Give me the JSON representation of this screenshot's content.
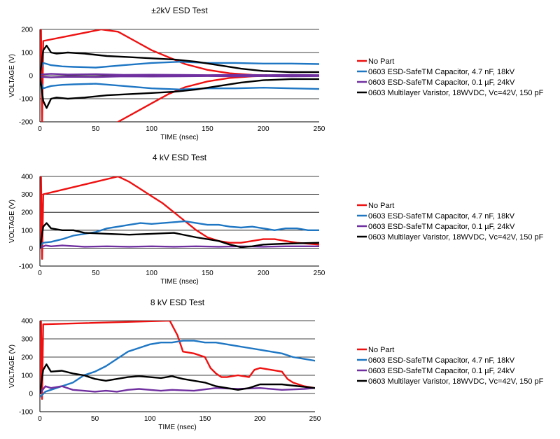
{
  "colors": {
    "no_part": "#ee1111",
    "cap_4n7": "#1f77c4",
    "cap_0u1": "#7030a0",
    "varistor": "#000000",
    "grid": "#000000"
  },
  "chart_data": [
    {
      "type": "line",
      "title": "±2kV ESD Test",
      "xlabel": "TIME (nsec)",
      "ylabel": "VOLTAGE (V)",
      "xlim": [
        0,
        250
      ],
      "ylim": [
        -200,
        200
      ],
      "xticks": [
        0,
        50,
        100,
        150,
        200,
        250
      ],
      "yticks": [
        -200,
        -100,
        0,
        100,
        200
      ],
      "grid": true,
      "legend_position": "right",
      "series": [
        {
          "name": "No Part",
          "color_key": "no_part",
          "x": [
            0,
            1,
            2,
            3,
            55,
            70,
            85,
            100,
            115,
            130,
            150,
            170,
            190,
            210,
            230,
            250
          ],
          "y": [
            0,
            200,
            -200,
            150,
            200,
            190,
            150,
            110,
            80,
            50,
            25,
            10,
            3,
            0,
            0,
            0
          ]
        },
        {
          "name": "No Part",
          "color_key": "no_part",
          "x": [
            70,
            85,
            100,
            115,
            130,
            150,
            170,
            190,
            210,
            230,
            250
          ],
          "y": [
            -200,
            -160,
            -120,
            -80,
            -50,
            -25,
            -10,
            -3,
            0,
            0,
            0
          ]
        },
        {
          "name": "0603 ESD-SafeTM Capacitor, 4.7 nF, 18kV",
          "color_key": "cap_4n7",
          "x": [
            0,
            3,
            10,
            20,
            30,
            50,
            75,
            100,
            125,
            150,
            175,
            200,
            225,
            250
          ],
          "y": [
            20,
            55,
            45,
            40,
            38,
            35,
            45,
            55,
            60,
            55,
            55,
            52,
            52,
            50
          ]
        },
        {
          "name": "0603 ESD-SafeTM Capacitor, 4.7 nF, 18kV",
          "color_key": "cap_4n7",
          "x": [
            0,
            3,
            10,
            20,
            30,
            50,
            75,
            100,
            125,
            150,
            175,
            200,
            225,
            250
          ],
          "y": [
            -20,
            -55,
            -45,
            -40,
            -38,
            -35,
            -45,
            -55,
            -60,
            -55,
            -55,
            -52,
            -55,
            -58
          ]
        },
        {
          "name": "0603 ESD-SafeTM Capacitor, 0.1 µF, 24kV",
          "color_key": "cap_0u1",
          "x": [
            0,
            10,
            25,
            50,
            75,
            100,
            125,
            150,
            175,
            200,
            225,
            250
          ],
          "y": [
            5,
            8,
            5,
            6,
            3,
            4,
            3,
            2,
            3,
            2,
            3,
            2
          ]
        },
        {
          "name": "0603 ESD-SafeTM Capacitor, 0.1 µF, 24kV",
          "color_key": "cap_0u1",
          "x": [
            0,
            10,
            25,
            50,
            75,
            100,
            125,
            150,
            175,
            200,
            225,
            250
          ],
          "y": [
            -5,
            -8,
            -5,
            -6,
            -3,
            -4,
            -3,
            -2,
            -3,
            -2,
            -3,
            -2
          ]
        },
        {
          "name": "0603 Multilayer Varistor, 18WVDC, Vc=42V, 150 pF",
          "color_key": "varistor",
          "x": [
            0,
            3,
            6,
            10,
            15,
            25,
            40,
            60,
            80,
            100,
            120,
            140,
            160,
            180,
            200,
            225,
            250
          ],
          "y": [
            0,
            110,
            130,
            100,
            95,
            100,
            95,
            85,
            80,
            75,
            70,
            60,
            45,
            30,
            20,
            15,
            15
          ]
        },
        {
          "name": "0603 Multilayer Varistor, 18WVDC, Vc=42V, 150 pF",
          "color_key": "varistor",
          "x": [
            0,
            3,
            6,
            10,
            15,
            25,
            40,
            60,
            80,
            100,
            120,
            140,
            160,
            180,
            200,
            225,
            250
          ],
          "y": [
            0,
            -110,
            -140,
            -100,
            -95,
            -100,
            -95,
            -85,
            -80,
            -75,
            -70,
            -60,
            -45,
            -30,
            -20,
            -15,
            -15
          ]
        }
      ]
    },
    {
      "type": "line",
      "title": "4 kV ESD Test",
      "xlabel": "TIME (nsec)",
      "ylabel": "VOLTAGE (V)",
      "xlim": [
        0,
        250
      ],
      "ylim": [
        -100,
        400
      ],
      "xticks": [
        0,
        50,
        100,
        150,
        200,
        250
      ],
      "yticks": [
        -100,
        0,
        100,
        200,
        300,
        400
      ],
      "grid": true,
      "legend_position": "right",
      "series": [
        {
          "name": "No Part",
          "color_key": "no_part",
          "x": [
            0,
            1,
            2,
            3,
            70,
            80,
            90,
            100,
            110,
            120,
            130,
            140,
            150,
            160,
            170,
            180,
            190,
            200,
            210,
            220,
            230,
            240,
            250
          ],
          "y": [
            0,
            400,
            -60,
            300,
            400,
            370,
            330,
            290,
            250,
            200,
            150,
            100,
            60,
            40,
            30,
            30,
            40,
            50,
            50,
            40,
            30,
            25,
            20
          ]
        },
        {
          "name": "0603 ESD-SafeTM Capacitor, 4.7 nF, 18kV",
          "color_key": "cap_4n7",
          "x": [
            0,
            3,
            10,
            20,
            30,
            40,
            50,
            60,
            70,
            80,
            90,
            100,
            110,
            120,
            130,
            140,
            150,
            160,
            170,
            180,
            190,
            200,
            210,
            220,
            230,
            240,
            250
          ],
          "y": [
            10,
            30,
            35,
            50,
            70,
            80,
            90,
            110,
            120,
            130,
            140,
            135,
            140,
            145,
            150,
            140,
            130,
            130,
            120,
            115,
            120,
            110,
            100,
            110,
            110,
            100,
            100
          ]
        },
        {
          "name": "0603 ESD-SafeTM Capacitor, 0.1 µF, 24kV",
          "color_key": "cap_0u1",
          "x": [
            0,
            5,
            10,
            20,
            40,
            60,
            80,
            100,
            120,
            140,
            160,
            180,
            200,
            220,
            250
          ],
          "y": [
            0,
            15,
            10,
            15,
            8,
            10,
            8,
            10,
            8,
            10,
            8,
            10,
            8,
            10,
            10
          ]
        },
        {
          "name": "0603 Multilayer Varistor, 18WVDC, Vc=42V, 150 pF",
          "color_key": "varistor",
          "x": [
            0,
            3,
            6,
            10,
            20,
            30,
            40,
            60,
            80,
            100,
            120,
            140,
            160,
            170,
            180,
            190,
            200,
            220,
            250
          ],
          "y": [
            0,
            120,
            140,
            110,
            100,
            100,
            85,
            80,
            75,
            80,
            85,
            60,
            40,
            20,
            5,
            10,
            20,
            25,
            30
          ]
        }
      ]
    },
    {
      "type": "line",
      "title": "8 kV ESD Test",
      "xlabel": "TIME (nsec)",
      "ylabel": "VOLTAGE (V)",
      "xlim": [
        0,
        250
      ],
      "ylim": [
        -100,
        400
      ],
      "xticks": [
        0,
        50,
        100,
        150,
        200,
        250
      ],
      "yticks": [
        -100,
        0,
        100,
        200,
        300,
        400
      ],
      "grid": true,
      "legend_position": "right",
      "series": [
        {
          "name": "No Part",
          "color_key": "no_part",
          "x": [
            0,
            1,
            2,
            3,
            118,
            125,
            130,
            140,
            150,
            155,
            160,
            165,
            170,
            180,
            190,
            195,
            200,
            210,
            220,
            225,
            230,
            240,
            250
          ],
          "y": [
            0,
            400,
            -30,
            380,
            400,
            320,
            230,
            220,
            200,
            140,
            110,
            90,
            90,
            100,
            90,
            130,
            140,
            130,
            120,
            80,
            60,
            40,
            30
          ]
        },
        {
          "name": "0603 ESD-SafeTM Capacitor, 4.7 nF, 18kV",
          "color_key": "cap_4n7",
          "x": [
            0,
            5,
            10,
            20,
            30,
            40,
            50,
            60,
            70,
            80,
            90,
            100,
            110,
            120,
            130,
            140,
            150,
            160,
            170,
            180,
            190,
            200,
            210,
            220,
            230,
            240,
            250
          ],
          "y": [
            -20,
            10,
            20,
            40,
            60,
            100,
            120,
            150,
            190,
            230,
            250,
            270,
            280,
            280,
            290,
            290,
            280,
            280,
            270,
            260,
            250,
            240,
            230,
            220,
            200,
            190,
            180
          ]
        },
        {
          "name": "0603 ESD-SafeTM Capacitor, 0.1 µF, 24kV",
          "color_key": "cap_0u1",
          "x": [
            0,
            5,
            10,
            20,
            30,
            40,
            50,
            60,
            70,
            80,
            90,
            100,
            110,
            120,
            140,
            160,
            180,
            200,
            220,
            240,
            250
          ],
          "y": [
            0,
            40,
            30,
            40,
            20,
            15,
            10,
            15,
            10,
            20,
            25,
            20,
            15,
            20,
            15,
            30,
            25,
            30,
            20,
            25,
            30
          ]
        },
        {
          "name": "0603 Multilayer Varistor, 18WVDC, Vc=42V, 150 pF",
          "color_key": "varistor",
          "x": [
            0,
            3,
            6,
            10,
            20,
            30,
            40,
            50,
            60,
            70,
            80,
            90,
            100,
            110,
            120,
            130,
            140,
            150,
            160,
            170,
            180,
            190,
            200,
            220,
            250
          ],
          "y": [
            0,
            130,
            160,
            120,
            125,
            110,
            100,
            80,
            70,
            80,
            90,
            95,
            90,
            85,
            95,
            80,
            70,
            60,
            40,
            30,
            20,
            30,
            50,
            50,
            30
          ]
        }
      ]
    }
  ],
  "legends": [
    {
      "items": [
        {
          "label": "No Part",
          "color_key": "no_part"
        },
        {
          "label": "0603 ESD-SafeTM Capacitor, 4.7 nF, 18kV",
          "color_key": "cap_4n7"
        },
        {
          "label": "0603 ESD-SafeTM Capacitor, 0.1 µF, 24kV",
          "color_key": "cap_0u1"
        },
        {
          "label": "0603 Multilayer Varistor, 18WVDC, Vc=42V, 150 pF",
          "color_key": "varistor"
        }
      ]
    },
    {
      "items": [
        {
          "label": "No Part",
          "color_key": "no_part"
        },
        {
          "label": "0603 ESD-SafeTM Capacitor, 4.7 nF, 18kV",
          "color_key": "cap_4n7"
        },
        {
          "label": "0603 ESD-SafeTM Capacitor, 0.1 µF, 24kV",
          "color_key": "cap_0u1"
        },
        {
          "label": "0603 Multilayer Varistor, 18WVDC, Vc=42V, 150 pF",
          "color_key": "varistor"
        }
      ]
    },
    {
      "items": [
        {
          "label": "No Part",
          "color_key": "no_part"
        },
        {
          "label": "0603 ESD-SafeTM Capacitor, 4.7 nF, 18kV",
          "color_key": "cap_4n7"
        },
        {
          "label": "0603 ESD-SafeTM Capacitor, 0.1 µF, 24kV",
          "color_key": "cap_0u1"
        },
        {
          "label": "0603 Multilayer Varistor, 18WVDC, Vc=42V, 150 pF",
          "color_key": "varistor"
        }
      ]
    }
  ]
}
